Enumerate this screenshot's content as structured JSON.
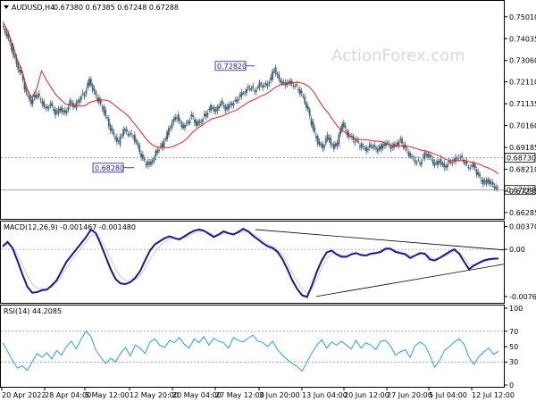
{
  "header": {
    "symbol": "AUDUSD,H4",
    "ohlc": "0.67380 0.67385 0.67248 0.67288"
  },
  "watermark": "ActionForex.com",
  "chart_data": [
    {
      "type": "candlestick",
      "panel": "price",
      "y_ticks": [
        "0.75010",
        "0.74035",
        "0.73060",
        "0.72110",
        "0.71135",
        "0.70160",
        "0.69185",
        "0.68210",
        "0.67235",
        "0.66285"
      ],
      "ylim": [
        0.662,
        0.752
      ],
      "annotations": [
        {
          "label": "0.72820",
          "value": 0.7282
        },
        {
          "label": "0.68280",
          "value": 0.6828
        }
      ],
      "reference_line": {
        "label": "0.68730",
        "value": 0.6873
      },
      "last_price": {
        "label": "0.67288",
        "value": 0.67288
      },
      "close_series": [
        0.746,
        0.742,
        0.736,
        0.729,
        0.724,
        0.716,
        0.712,
        0.716,
        0.713,
        0.709,
        0.711,
        0.707,
        0.709,
        0.707,
        0.712,
        0.71,
        0.714,
        0.716,
        0.722,
        0.716,
        0.712,
        0.708,
        0.702,
        0.697,
        0.694,
        0.7,
        0.698,
        0.697,
        0.692,
        0.686,
        0.684,
        0.686,
        0.691,
        0.693,
        0.698,
        0.703,
        0.706,
        0.701,
        0.702,
        0.706,
        0.702,
        0.704,
        0.707,
        0.71,
        0.708,
        0.712,
        0.709,
        0.711,
        0.712,
        0.715,
        0.717,
        0.719,
        0.717,
        0.72,
        0.719,
        0.721,
        0.727,
        0.722,
        0.72,
        0.721,
        0.72,
        0.718,
        0.714,
        0.708,
        0.7,
        0.694,
        0.692,
        0.697,
        0.692,
        0.694,
        0.703,
        0.698,
        0.696,
        0.694,
        0.692,
        0.691,
        0.693,
        0.691,
        0.692,
        0.694,
        0.692,
        0.693,
        0.695,
        0.691,
        0.688,
        0.686,
        0.685,
        0.689,
        0.688,
        0.684,
        0.686,
        0.683,
        0.685,
        0.686,
        0.688,
        0.686,
        0.683,
        0.684,
        0.679,
        0.676,
        0.677,
        0.675,
        0.673
      ]
    },
    {
      "type": "line",
      "panel": "macd",
      "title": "MACD(12,26,9) -0.001467 -0.001480",
      "y_ticks": [
        "0.003700",
        "0.00",
        "-0.007608"
      ],
      "ylim": [
        -0.0082,
        0.0042
      ],
      "values": [
        0.0005,
        0.0012,
        0.0002,
        -0.0018,
        -0.004,
        -0.006,
        -0.007,
        -0.0069,
        -0.0066,
        -0.0065,
        -0.0058,
        -0.005,
        -0.0035,
        -0.002,
        -0.001,
        0.0,
        0.001,
        0.002,
        0.0032,
        0.0026,
        0.0008,
        -0.0012,
        -0.0032,
        -0.0048,
        -0.0055,
        -0.0056,
        -0.0053,
        -0.0046,
        -0.0035,
        -0.0018,
        -0.0002,
        0.0008,
        0.0013,
        0.0018,
        0.0021,
        0.0018,
        0.0016,
        0.0021,
        0.0026,
        0.003,
        0.0032,
        0.003,
        0.0025,
        0.002,
        0.0024,
        0.0029,
        0.0026,
        0.0024,
        0.0028,
        0.0033,
        0.0029,
        0.0022,
        0.0016,
        0.001,
        0.0005,
        0.0002,
        -0.0004,
        -0.0016,
        -0.0032,
        -0.005,
        -0.0064,
        -0.0074,
        -0.0077,
        -0.0058,
        -0.0036,
        -0.0018,
        -0.0005,
        -0.0002,
        -0.0008,
        -0.0012,
        -0.0012,
        -0.0008,
        -0.0006,
        -0.0009,
        -0.001,
        -0.0007,
        -0.0006,
        -0.0004,
        0.0001,
        0.0001,
        -0.0004,
        -0.0006,
        -0.0008,
        -0.0014,
        -0.001,
        -0.0006,
        -0.0007,
        -0.0016,
        -0.0018,
        -0.0014,
        -0.0009,
        -0.0004,
        0.0,
        -0.0007,
        -0.002,
        -0.0032,
        -0.0026,
        -0.0022,
        -0.0018,
        -0.0016,
        -0.0015,
        -0.0015
      ],
      "signal": [
        0.0003,
        0.0008,
        0.0004,
        -0.0008,
        -0.0024,
        -0.0042,
        -0.0056,
        -0.0063,
        -0.0064,
        -0.0064,
        -0.0061,
        -0.0054,
        -0.0043,
        -0.003,
        -0.0018,
        -0.0008,
        0.0002,
        0.0012,
        0.0022,
        0.0024,
        0.0016,
        0.0002,
        -0.0016,
        -0.0032,
        -0.0044,
        -0.005,
        -0.0052,
        -0.0049,
        -0.0042,
        -0.003,
        -0.0016,
        -0.0004,
        0.0005,
        0.0012,
        0.0017,
        0.0018,
        0.0017,
        0.0019,
        0.0022,
        0.0026,
        0.0029,
        0.0029,
        0.0027,
        0.0023,
        0.0023,
        0.0026,
        0.0026,
        0.0025,
        0.0026,
        0.0029,
        0.0029,
        0.0025,
        0.002,
        0.0014,
        0.0009,
        0.0005,
        0.0,
        -0.0009,
        -0.0022,
        -0.0038,
        -0.0052,
        -0.0064,
        -0.0071,
        -0.0064,
        -0.0048,
        -0.003,
        -0.0015,
        -0.0007,
        -0.0007,
        -0.0009,
        -0.0011,
        -0.0009,
        -0.0007,
        -0.0008,
        -0.0009,
        -0.0008,
        -0.0007,
        -0.0005,
        -0.0001,
        0.0,
        -0.0002,
        -0.0004,
        -0.0006,
        -0.001,
        -0.001,
        -0.0008,
        -0.0007,
        -0.0012,
        -0.0015,
        -0.0014,
        -0.0011,
        -0.0007,
        -0.0003,
        -0.0005,
        -0.0013,
        -0.0024,
        -0.0025,
        -0.0023,
        -0.002,
        -0.0018,
        -0.0016,
        -0.0015
      ]
    },
    {
      "type": "line",
      "panel": "rsi",
      "title": "RSI(14) 44.2085",
      "y_ticks": [
        "100",
        "70",
        "50",
        "30",
        "0"
      ],
      "ylim": [
        0,
        100
      ],
      "levels": [
        70,
        30
      ],
      "values": [
        55,
        44,
        32,
        22,
        25,
        19,
        30,
        41,
        36,
        42,
        34,
        45,
        39,
        50,
        57,
        47,
        60,
        70,
        63,
        45,
        36,
        28,
        35,
        30,
        41,
        49,
        38,
        52,
        48,
        41,
        56,
        60,
        52,
        49,
        58,
        55,
        62,
        53,
        48,
        60,
        55,
        63,
        52,
        61,
        57,
        55,
        48,
        62,
        58,
        56,
        61,
        65,
        57,
        55,
        50,
        57,
        46,
        39,
        33,
        28,
        24,
        18,
        30,
        42,
        52,
        59,
        48,
        56,
        52,
        57,
        52,
        47,
        58,
        48,
        55,
        52,
        46,
        57,
        58,
        51,
        39,
        43,
        46,
        36,
        51,
        56,
        52,
        39,
        23,
        32,
        45,
        50,
        56,
        60,
        53,
        36,
        27,
        37,
        43,
        48,
        40,
        44
      ]
    }
  ],
  "x_axis": {
    "labels": [
      "20 Apr 2022",
      "28 Apr 04:00",
      "5 May 12:00",
      "12 May 20:00",
      "20 May 04:00",
      "27 May 12:00",
      "3 Jun 20:00",
      "13 Jun 04:00",
      "20 Jun 12:00",
      "27 Jun 20:00",
      "5 Jul 04:00",
      "12 Jul 12:00"
    ]
  },
  "colors": {
    "candle_body": "#3f5f73",
    "moving_average": "#e32222",
    "macd_line": "#1a1a8c",
    "signal_line": "#c8c8d8",
    "rsi_line": "#2e9ce8",
    "gridline": "#999999",
    "label_box_border": "#1a1a8c"
  }
}
